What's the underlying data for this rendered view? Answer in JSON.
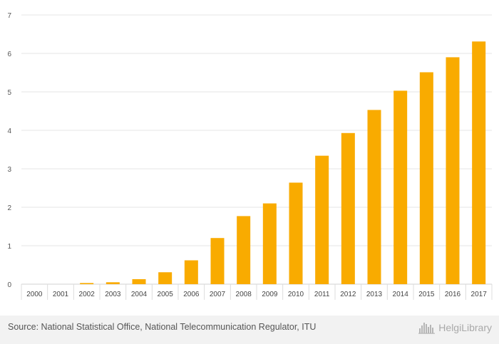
{
  "chart_data": {
    "type": "bar",
    "title": "",
    "xlabel": "",
    "ylabel": "",
    "ylim": [
      0,
      7
    ],
    "yticks": [
      0,
      1,
      2,
      3,
      4,
      5,
      6,
      7
    ],
    "grid": true,
    "categories": [
      "2000",
      "2001",
      "2002",
      "2003",
      "2004",
      "2005",
      "2006",
      "2007",
      "2008",
      "2009",
      "2010",
      "2011",
      "2012",
      "2013",
      "2014",
      "2015",
      "2016",
      "2017"
    ],
    "values": [
      0.0,
      0.0,
      0.03,
      0.05,
      0.13,
      0.31,
      0.62,
      1.2,
      1.77,
      2.1,
      2.64,
      3.34,
      3.93,
      4.53,
      5.03,
      5.51,
      5.9,
      6.31
    ],
    "bar_color": "#f9ab00"
  },
  "footer": {
    "source_text": "Source: National Statistical Office, National Telecommunication Regulator, ITU",
    "brand_name": "HelgiLibrary"
  },
  "colors": {
    "bar": "#f9ab00",
    "grid": "#e6e6e6",
    "footer_bg": "#f2f2f2"
  }
}
